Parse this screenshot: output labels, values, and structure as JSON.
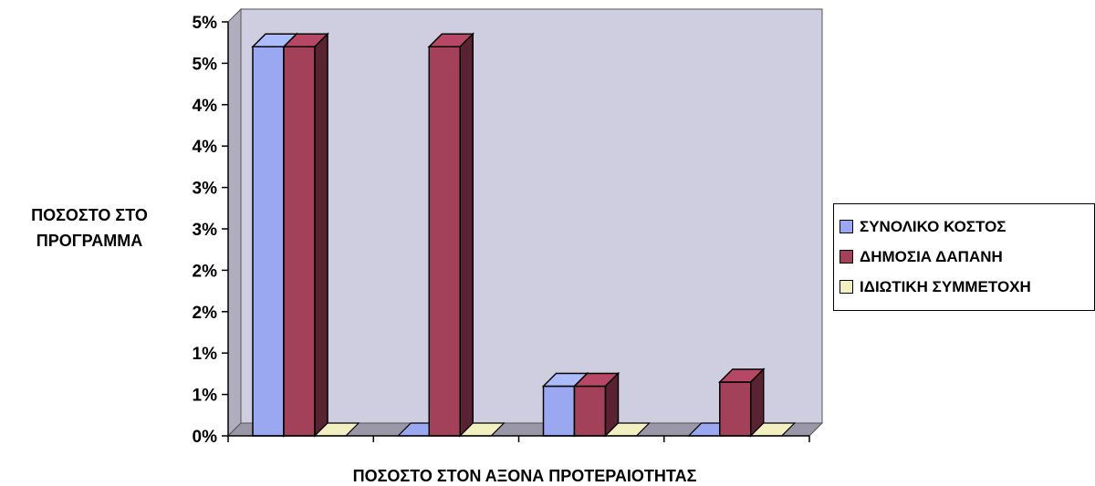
{
  "chart_data": {
    "type": "bar",
    "title": "",
    "xlabel": "ΠΟΣΟΣΤΟ ΣΤΟΝ ΑΞΟΝΑ ΠΡΟΤΕΡΑΙΟΤΗΤΑΣ",
    "ylabel_lines": [
      "ΠΟΣΟΣΤΟ ΣΤΟ",
      "ΠΡΟΓΡΑΜΜΑ"
    ],
    "ylim": [
      0,
      5
    ],
    "yticks": [
      0,
      0.5,
      1,
      1.5,
      2,
      2.5,
      3,
      3.5,
      4,
      4.5,
      5
    ],
    "ytick_labels": [
      "0%",
      "1%",
      "1%",
      "2%",
      "2%",
      "3%",
      "3%",
      "4%",
      "4%",
      "5%",
      "5%"
    ],
    "categories": [
      "",
      "",
      "",
      ""
    ],
    "series": [
      {
        "name": "ΣΥΝΟΛΙΚΟ ΚΟΣΤΟΣ",
        "color": "#99a8f0",
        "values": [
          4.7,
          0,
          0.6,
          0
        ]
      },
      {
        "name": "ΔΗΜΟΣΙΑ ΔΑΠΑΝΗ",
        "color": "#a3405a",
        "values": [
          4.7,
          4.7,
          0.6,
          0.65
        ]
      },
      {
        "name": "ΙΔΙΩΤΙΚΗ ΣΥΜΜΕΤΟΧΗ",
        "color": "#f2f0c0",
        "values": [
          0,
          0,
          0,
          0
        ]
      }
    ],
    "grid": false,
    "legend_position": "right",
    "wall_color": "#cfcde0",
    "view": "3d"
  }
}
